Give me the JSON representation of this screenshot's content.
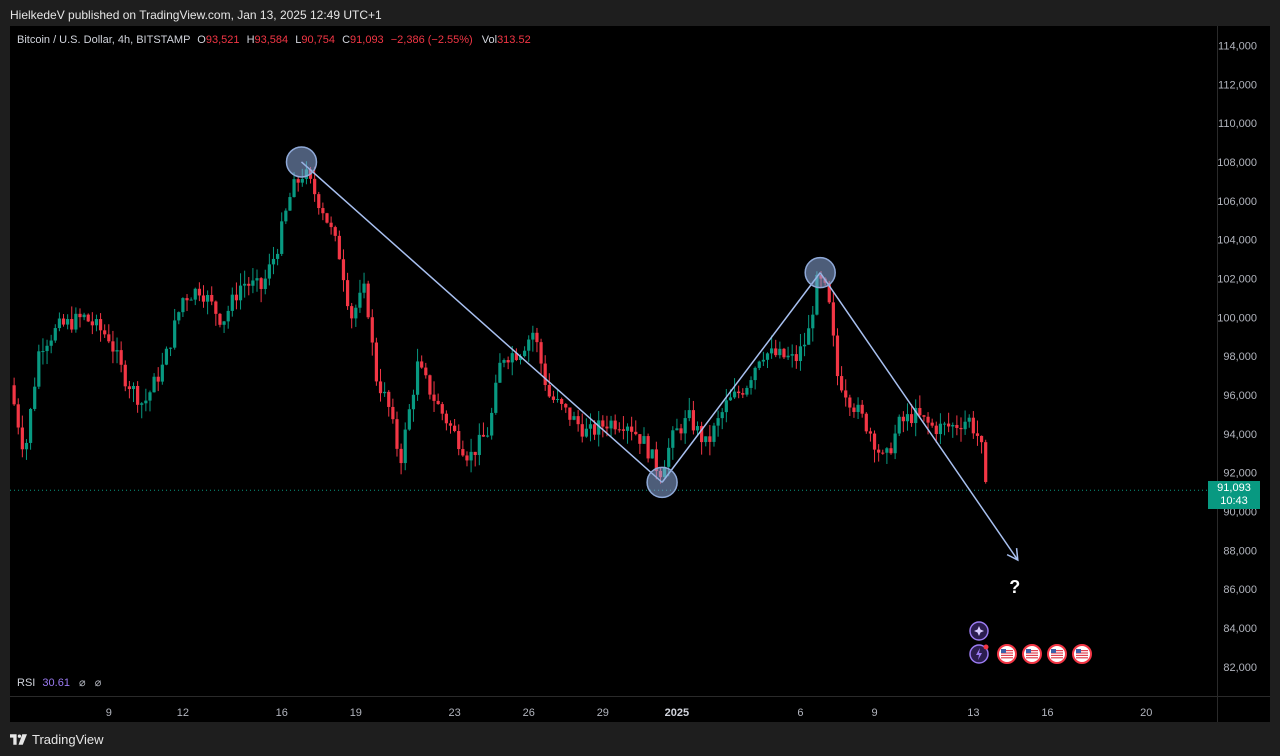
{
  "header": {
    "published_text": "HielkedeV published on TradingView.com, Jan 13, 2025 12:49 UTC+1"
  },
  "legend": {
    "symbol": "Bitcoin / U.S. Dollar, 4h, BITSTAMP",
    "open_label": "O",
    "open": "93,521",
    "high_label": "H",
    "high": "93,584",
    "low_label": "L",
    "low": "90,754",
    "close_label": "C",
    "close": "91,093",
    "change": "−2,386 (−2.55%)",
    "vol_label": "Vol",
    "vol": "313.52"
  },
  "rsi": {
    "label": "RSI",
    "value": "30.61",
    "glyph1": "⌀",
    "glyph2": "⌀"
  },
  "current_price": {
    "price": "91,093",
    "countdown": "10:43",
    "color": "#089981"
  },
  "annotation": {
    "question": "?"
  },
  "colors": {
    "up": "#089981",
    "down": "#f23645",
    "drawing": "#a8c0f0",
    "background": "#000000"
  },
  "footer": {
    "brand": "TradingView",
    "icon": "tradingview-logo-icon"
  },
  "chart_data": {
    "type": "candlestick",
    "symbol": "Bitcoin / U.S. Dollar",
    "interval": "4h",
    "exchange": "BITSTAMP",
    "ylim": [
      80500,
      115000
    ],
    "price_ticks": [
      "82,000",
      "84,000",
      "86,000",
      "88,000",
      "90,000",
      "92,000",
      "94,000",
      "96,000",
      "98,000",
      "100,000",
      "102,000",
      "104,000",
      "106,000",
      "108,000",
      "110,000",
      "112,000",
      "114,000"
    ],
    "price_tick_values": [
      82000,
      84000,
      86000,
      88000,
      90000,
      92000,
      94000,
      96000,
      98000,
      100000,
      102000,
      104000,
      106000,
      108000,
      110000,
      112000,
      114000
    ],
    "time_ticks": [
      {
        "day": 9,
        "label": "9",
        "bold": false
      },
      {
        "day": 12,
        "label": "12",
        "bold": false
      },
      {
        "day": 16,
        "label": "16",
        "bold": false
      },
      {
        "day": 19,
        "label": "19",
        "bold": false
      },
      {
        "day": 23,
        "label": "23",
        "bold": false
      },
      {
        "day": 26,
        "label": "26",
        "bold": false
      },
      {
        "day": 29,
        "label": "29",
        "bold": false
      },
      {
        "day": 32,
        "label": "2025",
        "bold": true
      },
      {
        "day": 37,
        "label": "6",
        "bold": false
      },
      {
        "day": 40,
        "label": "9",
        "bold": false
      },
      {
        "day": 44,
        "label": "13",
        "bold": false
      },
      {
        "day": 47,
        "label": "16",
        "bold": false
      },
      {
        "day": 51,
        "label": "20",
        "bold": false
      }
    ],
    "xlim_days": [
      5.0,
      53.5
    ],
    "current_price": 91093,
    "key_points": [
      {
        "name": "peak-dec-17",
        "day": 16.8,
        "price": 108000
      },
      {
        "name": "low-dec-30",
        "day": 31.4,
        "price": 91500
      },
      {
        "name": "peak-jan-7",
        "day": 37.8,
        "price": 102300
      }
    ],
    "projection_end": {
      "day": 45.8,
      "price": 87500
    },
    "path": [
      {
        "day": 5.0,
        "price": 96500
      },
      {
        "day": 5.6,
        "price": 93000
      },
      {
        "day": 6.2,
        "price": 98500
      },
      {
        "day": 7.0,
        "price": 99500
      },
      {
        "day": 8.0,
        "price": 100000
      },
      {
        "day": 9.0,
        "price": 99000
      },
      {
        "day": 9.6,
        "price": 97000
      },
      {
        "day": 10.4,
        "price": 95500
      },
      {
        "day": 11.2,
        "price": 97500
      },
      {
        "day": 12.0,
        "price": 101000
      },
      {
        "day": 12.7,
        "price": 101500
      },
      {
        "day": 13.6,
        "price": 99800
      },
      {
        "day": 14.4,
        "price": 101800
      },
      {
        "day": 15.2,
        "price": 101500
      },
      {
        "day": 15.8,
        "price": 103500
      },
      {
        "day": 16.4,
        "price": 106500
      },
      {
        "day": 16.9,
        "price": 107500
      },
      {
        "day": 17.7,
        "price": 105500
      },
      {
        "day": 18.4,
        "price": 103000
      },
      {
        "day": 18.8,
        "price": 100000
      },
      {
        "day": 19.4,
        "price": 101500
      },
      {
        "day": 19.8,
        "price": 97000
      },
      {
        "day": 20.3,
        "price": 95500
      },
      {
        "day": 20.8,
        "price": 92600
      },
      {
        "day": 21.5,
        "price": 97500
      },
      {
        "day": 22.3,
        "price": 95500
      },
      {
        "day": 23.0,
        "price": 94000
      },
      {
        "day": 23.6,
        "price": 92800
      },
      {
        "day": 24.4,
        "price": 94200
      },
      {
        "day": 24.9,
        "price": 98000
      },
      {
        "day": 25.6,
        "price": 98200
      },
      {
        "day": 26.2,
        "price": 99300
      },
      {
        "day": 26.8,
        "price": 96000
      },
      {
        "day": 27.6,
        "price": 95000
      },
      {
        "day": 28.4,
        "price": 94000
      },
      {
        "day": 29.2,
        "price": 94600
      },
      {
        "day": 30.0,
        "price": 94600
      },
      {
        "day": 30.7,
        "price": 93500
      },
      {
        "day": 31.3,
        "price": 92000
      },
      {
        "day": 31.9,
        "price": 94000
      },
      {
        "day": 32.5,
        "price": 94800
      },
      {
        "day": 33.2,
        "price": 93400
      },
      {
        "day": 34.0,
        "price": 95500
      },
      {
        "day": 34.8,
        "price": 96500
      },
      {
        "day": 35.4,
        "price": 98200
      },
      {
        "day": 36.2,
        "price": 98000
      },
      {
        "day": 36.8,
        "price": 97800
      },
      {
        "day": 37.3,
        "price": 99000
      },
      {
        "day": 37.7,
        "price": 102000
      },
      {
        "day": 38.1,
        "price": 101200
      },
      {
        "day": 38.5,
        "price": 97000
      },
      {
        "day": 39.0,
        "price": 95800
      },
      {
        "day": 39.8,
        "price": 94200
      },
      {
        "day": 40.4,
        "price": 92500
      },
      {
        "day": 41.0,
        "price": 94500
      },
      {
        "day": 41.6,
        "price": 95000
      },
      {
        "day": 42.4,
        "price": 94300
      },
      {
        "day": 43.2,
        "price": 94400
      },
      {
        "day": 43.8,
        "price": 94800
      },
      {
        "day": 44.3,
        "price": 93600
      },
      {
        "day": 44.5,
        "price": 91093
      }
    ]
  }
}
